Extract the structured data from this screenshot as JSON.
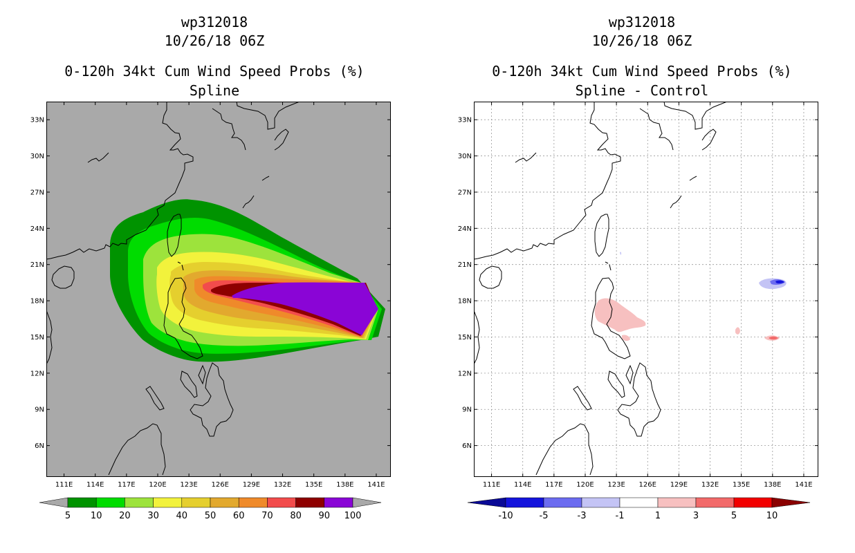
{
  "left_panel": {
    "title_storm": "wp312018",
    "title_date": "10/26/18 06Z",
    "title_product": "0-120h 34kt Cum Wind Speed Probs (%)",
    "title_method": "Spline",
    "colorbar": {
      "labels": [
        "5",
        "10",
        "20",
        "30",
        "40",
        "50",
        "60",
        "70",
        "80",
        "90",
        "100"
      ],
      "colors": [
        "#009300",
        "#00dc00",
        "#9de33c",
        "#f2f23c",
        "#e5cf2e",
        "#e2a92e",
        "#ef8a2a",
        "#f24c4c",
        "#8e0000",
        "#8a05d6"
      ],
      "end_color": "#a9a9a9"
    },
    "background_color": "#a9a9a9"
  },
  "right_panel": {
    "title_storm": "wp312018",
    "title_date": "10/26/18 06Z",
    "title_product": "0-120h 34kt Cum Wind Speed Probs (%)",
    "title_method": "Spline - Control",
    "colorbar": {
      "labels": [
        "-10",
        "-5",
        "-3",
        "-1",
        "1",
        "3",
        "5",
        "10"
      ],
      "colors": [
        "#1414dc",
        "#6c6cf0",
        "#c4c4f5",
        "#ffffff",
        "#f7c0c0",
        "#f26a6a",
        "#f20000"
      ],
      "end_left": "#0a0a96",
      "end_right": "#8a0000"
    }
  },
  "axes": {
    "lon_labels": [
      "111E",
      "114E",
      "117E",
      "120E",
      "123E",
      "126E",
      "129E",
      "132E",
      "135E",
      "138E",
      "141E"
    ],
    "lat_labels": [
      "33N",
      "30N",
      "27N",
      "24N",
      "21N",
      "18N",
      "15N",
      "12N",
      "9N",
      "6N"
    ]
  }
}
